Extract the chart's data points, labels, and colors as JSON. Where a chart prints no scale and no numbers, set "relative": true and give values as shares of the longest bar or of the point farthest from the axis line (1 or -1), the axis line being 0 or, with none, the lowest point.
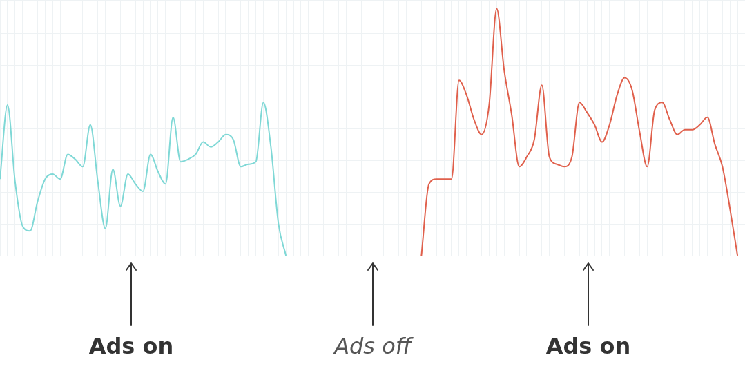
{
  "chart_data": {
    "type": "line",
    "relative": true,
    "grid": true,
    "legend": false,
    "marker": "none",
    "line_style": "solid",
    "categories": [
      null,
      null,
      null,
      null,
      null,
      null,
      null,
      null,
      null,
      null,
      null,
      null,
      null,
      null,
      null,
      null,
      null,
      null,
      null,
      null,
      null,
      null,
      null,
      null,
      null,
      null,
      null,
      null,
      null,
      null,
      null,
      null,
      null,
      null,
      null,
      null,
      null,
      null,
      null,
      null,
      null,
      null,
      null,
      null,
      null,
      null,
      null,
      null,
      null,
      null,
      null,
      null,
      null,
      null,
      null,
      null,
      null,
      null,
      null,
      null,
      null,
      null,
      null,
      null,
      null,
      null,
      null,
      null,
      null,
      null,
      null,
      null,
      null,
      null,
      null,
      null,
      null,
      null,
      null,
      null,
      null,
      null,
      null,
      null,
      null,
      null,
      null,
      null,
      null,
      null,
      null,
      null,
      null,
      null,
      null,
      null,
      null,
      null,
      null,
      null
    ],
    "series": [
      {
        "color": "#7fd8d6",
        "values": [
          0.31,
          0.61,
          0.3,
          0.12,
          0.1,
          0.22,
          0.31,
          0.33,
          0.31,
          0.41,
          0.39,
          0.36,
          0.53,
          0.3,
          0.11,
          0.35,
          0.2,
          0.33,
          0.29,
          0.26,
          0.41,
          0.34,
          0.29,
          0.56,
          0.38,
          0.39,
          0.41,
          0.46,
          0.44,
          0.46,
          0.49,
          0.47,
          0.36,
          0.37,
          0.38,
          0.62,
          0.44,
          0.13,
          0,
          null,
          null,
          null,
          null,
          null,
          null,
          null,
          null,
          null,
          null,
          null,
          null,
          null,
          null,
          null,
          null,
          null,
          null,
          null,
          null,
          null,
          null,
          null,
          null,
          null,
          null,
          null,
          null,
          null,
          null,
          null,
          null,
          null,
          null,
          null,
          null,
          null,
          null,
          null,
          null,
          null,
          null,
          null,
          null,
          null,
          null,
          null,
          null,
          null,
          null,
          null,
          null,
          null,
          null,
          null,
          null,
          null,
          null,
          null,
          null,
          null
        ]
      },
      {
        "color": "#e0604c",
        "values": [
          null,
          null,
          null,
          null,
          null,
          null,
          null,
          null,
          null,
          null,
          null,
          null,
          null,
          null,
          null,
          null,
          null,
          null,
          null,
          null,
          null,
          null,
          null,
          null,
          null,
          null,
          null,
          null,
          null,
          null,
          null,
          null,
          null,
          null,
          null,
          null,
          null,
          null,
          null,
          null,
          null,
          null,
          null,
          null,
          null,
          null,
          null,
          null,
          null,
          null,
          null,
          null,
          null,
          null,
          null,
          null,
          0,
          0.29,
          0.31,
          0.31,
          0.31,
          0.71,
          0.65,
          0.55,
          0.49,
          0.61,
          1,
          0.75,
          0.57,
          0.36,
          0.4,
          0.47,
          0.69,
          0.4,
          0.37,
          0.36,
          0.4,
          0.62,
          0.58,
          0.53,
          0.46,
          0.53,
          0.65,
          0.72,
          0.67,
          0.5,
          0.36,
          0.59,
          0.62,
          0.55,
          0.49,
          0.51,
          0.51,
          0.53,
          0.56,
          0.45,
          0.36,
          0.19,
          0,
          null
        ]
      }
    ],
    "annotations": [
      "Ads on",
      "Ads off",
      "Ads on"
    ]
  }
}
